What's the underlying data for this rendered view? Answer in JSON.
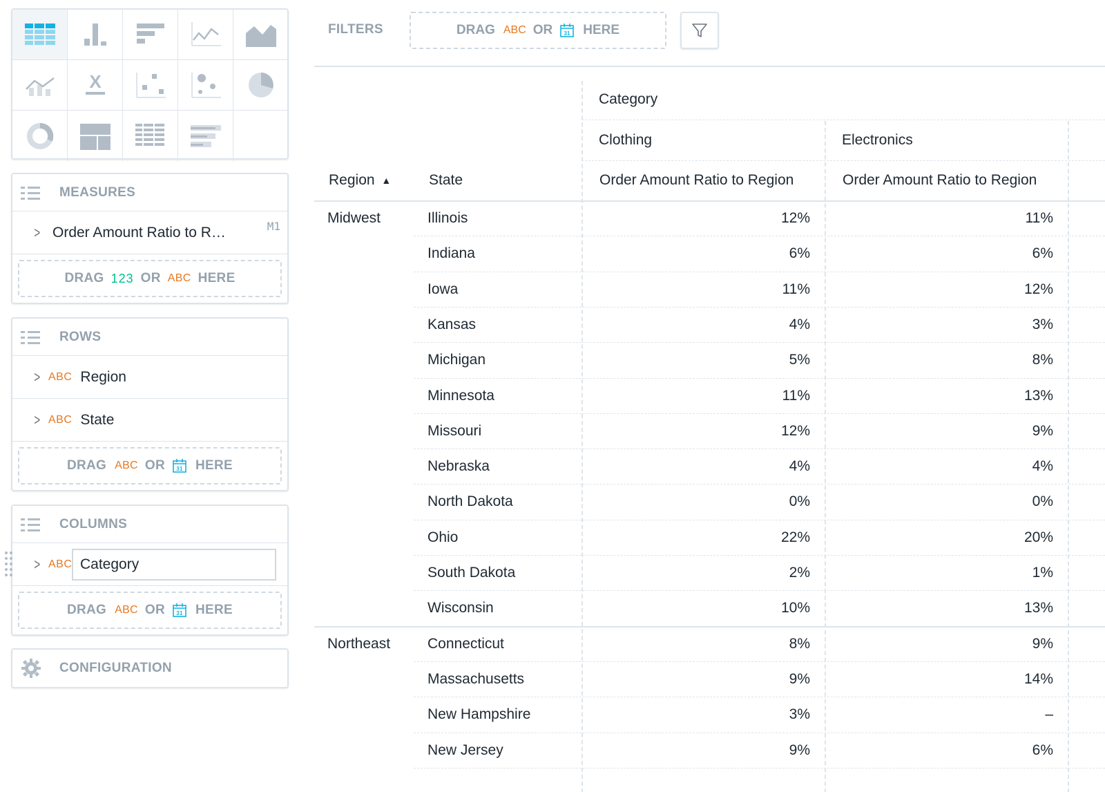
{
  "sidebar": {
    "measures": {
      "title": "MEASURES",
      "items": [
        {
          "label": "Order Amount Ratio to R…",
          "badge": "M1"
        }
      ],
      "drop": {
        "drag": "DRAG",
        "num": "123",
        "or": "OR",
        "abc": "ABC",
        "here": "HERE"
      }
    },
    "rows": {
      "title": "ROWS",
      "items": [
        {
          "type": "ABC",
          "label": "Region"
        },
        {
          "type": "ABC",
          "label": "State"
        }
      ],
      "drop": {
        "drag": "DRAG",
        "abc": "ABC",
        "or": "OR",
        "here": "HERE"
      }
    },
    "columns": {
      "title": "COLUMNS",
      "items": [
        {
          "type": "ABC",
          "label": "Category"
        }
      ],
      "drop": {
        "drag": "DRAG",
        "abc": "ABC",
        "or": "OR",
        "here": "HERE"
      }
    },
    "configuration": {
      "title": "CONFIGURATION"
    }
  },
  "filters": {
    "label": "FILTERS",
    "drag": "DRAG",
    "abc": "ABC",
    "or": "OR",
    "here": "HERE"
  },
  "table": {
    "column_attribute": "Category",
    "categories": [
      "Clothing",
      "Electronics"
    ],
    "measure_header": "Order Amount Ratio to Region",
    "row_headers": [
      "Region",
      "State"
    ],
    "sort_indicator": "▲",
    "rows": [
      {
        "region": "Midwest",
        "state": "Illinois",
        "clothing": "12%",
        "electronics": "11%"
      },
      {
        "region": "",
        "state": "Indiana",
        "clothing": "6%",
        "electronics": "6%"
      },
      {
        "region": "",
        "state": "Iowa",
        "clothing": "11%",
        "electronics": "12%"
      },
      {
        "region": "",
        "state": "Kansas",
        "clothing": "4%",
        "electronics": "3%"
      },
      {
        "region": "",
        "state": "Michigan",
        "clothing": "5%",
        "electronics": "8%"
      },
      {
        "region": "",
        "state": "Minnesota",
        "clothing": "11%",
        "electronics": "13%"
      },
      {
        "region": "",
        "state": "Missouri",
        "clothing": "12%",
        "electronics": "9%"
      },
      {
        "region": "",
        "state": "Nebraska",
        "clothing": "4%",
        "electronics": "4%"
      },
      {
        "region": "",
        "state": "North Dakota",
        "clothing": "0%",
        "electronics": "0%"
      },
      {
        "region": "",
        "state": "Ohio",
        "clothing": "22%",
        "electronics": "20%"
      },
      {
        "region": "",
        "state": "South Dakota",
        "clothing": "2%",
        "electronics": "1%"
      },
      {
        "region": "",
        "state": "Wisconsin",
        "clothing": "10%",
        "electronics": "13%"
      },
      {
        "region": "Northeast",
        "state": "Connecticut",
        "clothing": "8%",
        "electronics": "9%"
      },
      {
        "region": "",
        "state": "Massachusetts",
        "clothing": "9%",
        "electronics": "14%"
      },
      {
        "region": "",
        "state": "New Hampshire",
        "clothing": "3%",
        "electronics": "–"
      },
      {
        "region": "",
        "state": "New Jersey",
        "clothing": "9%",
        "electronics": "6%"
      }
    ]
  },
  "icons": {
    "viz_types": [
      "table-chart-icon",
      "column-chart-icon",
      "bar-chart-icon",
      "line-chart-icon",
      "area-chart-icon",
      "combo-chart-icon",
      "headline-icon",
      "scatter-plot-icon",
      "bubble-chart-icon",
      "pie-chart-icon",
      "donut-chart-icon",
      "treemap-icon",
      "heatmap-icon",
      "bullet-chart-icon"
    ],
    "active_viz": "table-chart-icon"
  },
  "colors": {
    "accent_blue": "#14b2e2",
    "abc_orange": "#e8781e",
    "number_green": "#00c18d",
    "muted_gray": "#94a1ad"
  }
}
